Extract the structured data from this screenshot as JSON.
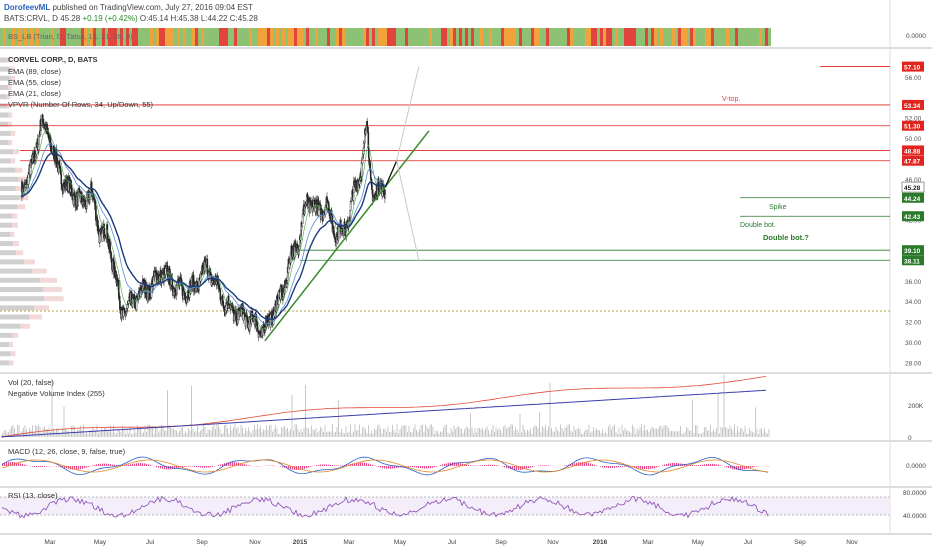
{
  "header": {
    "author": "DorofeevML",
    "published": "published on TradingView.com, July 27, 2016 09:04 EST",
    "ticker": "BATS:CRVL, D",
    "last": "45.28",
    "change": "+0.19 (+0.42%)",
    "o": "O:45.14",
    "h": "H:45.38",
    "l": "L:44.22",
    "c": "C:45.28"
  },
  "strip": {
    "label": "BS_LB (Trian, D, Tatsa, 13, 21, 26, 9)",
    "value": "0.0000",
    "colors": {
      "green": "#8dc275",
      "red": "#e0443c",
      "orange": "#f2a23a"
    }
  },
  "main": {
    "title": "CORVEL CORP., D, BATS",
    "studies": [
      "EMA (89, close)",
      "EMA (55, close)",
      "EMA (21, close)",
      "VPVR (Number Of Rows, 34, Up/Down, 55)"
    ],
    "annotations": {
      "vtop": "V-top.",
      "spike": "Spike",
      "double_bot": "Double bot.",
      "double_bot_q": "Double bot.?"
    },
    "price_ticks": [
      "56.00",
      "52.00",
      "50.00",
      "46.00",
      "44.00",
      "42.00",
      "38.00",
      "36.00",
      "34.00",
      "32.00",
      "30.00",
      "28.00"
    ],
    "price_tags": [
      {
        "text": "57.10",
        "color": "#e0241e"
      },
      {
        "text": "53.34",
        "color": "#e0241e"
      },
      {
        "text": "51.30",
        "color": "#e0241e"
      },
      {
        "text": "48.88",
        "color": "#e0241e"
      },
      {
        "text": "47.87",
        "color": "#e0241e"
      },
      {
        "text": "45.28",
        "color": "#ffffff"
      },
      {
        "text": "44.24",
        "color": "#2a7a2a"
      },
      {
        "text": "42.43",
        "color": "#2a7a2a"
      },
      {
        "text": "39.10",
        "color": "#2a7a2a"
      },
      {
        "text": "38.11",
        "color": "#2a7a2a"
      }
    ]
  },
  "vol": {
    "label1": "Vol (20, false)",
    "label2": "Negative Volume Index (255)",
    "ticks": [
      "200K",
      "0"
    ]
  },
  "macd": {
    "label": "MACD (12, 26, close, 9, false, true)",
    "ticks": [
      "0.0000"
    ]
  },
  "rsi": {
    "label": "RSI (13, close)",
    "ticks": [
      "80.0000",
      "40.0000"
    ]
  },
  "time_axis": [
    "Mar",
    "May",
    "Jul",
    "Sep",
    "Nov",
    "2015",
    "Mar",
    "May",
    "Jul",
    "Sep",
    "Nov",
    "2016",
    "Mar",
    "May",
    "Jul",
    "Sep",
    "Nov"
  ],
  "chart_data": {
    "type": "line",
    "symbol": "BATS:CRVL",
    "interval": "D",
    "price_ylim": [
      28,
      58
    ],
    "price_path": [
      [
        "2014-01-15",
        45
      ],
      [
        "2014-02-10",
        47
      ],
      [
        "2014-03-05",
        51.5
      ],
      [
        "2014-03-25",
        50.5
      ],
      [
        "2014-04-10",
        48
      ],
      [
        "2014-05-05",
        45.5
      ],
      [
        "2014-06-01",
        44.5
      ],
      [
        "2014-06-20",
        43.5
      ],
      [
        "2014-07-10",
        45
      ],
      [
        "2014-08-01",
        41
      ],
      [
        "2014-08-20",
        40.5
      ],
      [
        "2014-09-10",
        37
      ],
      [
        "2014-09-25",
        33
      ],
      [
        "2014-10-15",
        33.5
      ],
      [
        "2014-11-15",
        35
      ],
      [
        "2014-12-10",
        35.5
      ],
      [
        "2015-01-05",
        37
      ],
      [
        "2015-02-01",
        36
      ],
      [
        "2015-03-01",
        35
      ],
      [
        "2015-04-01",
        35.5
      ],
      [
        "2015-05-01",
        37.5
      ],
      [
        "2015-05-20",
        36
      ],
      [
        "2015-06-15",
        34
      ],
      [
        "2015-07-10",
        33
      ],
      [
        "2015-08-10",
        32.5
      ],
      [
        "2015-09-01",
        32
      ],
      [
        "2015-09-20",
        31
      ],
      [
        "2015-10-15",
        33
      ],
      [
        "2015-11-10",
        35
      ],
      [
        "2015-12-01",
        38.5
      ],
      [
        "2015-12-20",
        40
      ],
      [
        "2016-01-10",
        44
      ],
      [
        "2016-02-05",
        43
      ],
      [
        "2016-03-01",
        43.5
      ],
      [
        "2016-03-25",
        40.5
      ],
      [
        "2016-04-20",
        41.5
      ],
      [
        "2016-05-10",
        45
      ],
      [
        "2016-06-01",
        48
      ],
      [
        "2016-06-10",
        52
      ],
      [
        "2016-06-20",
        46
      ],
      [
        "2016-07-01",
        44
      ],
      [
        "2016-07-15",
        45.5
      ],
      [
        "2016-07-27",
        45.28
      ]
    ],
    "levels": [
      57.1,
      53.34,
      51.3,
      48.88,
      47.87,
      44.24,
      42.43,
      39.1,
      38.11
    ],
    "trendline": [
      [
        "2015-09-25",
        30.2
      ],
      [
        "2016-11-15",
        50.8
      ]
    ],
    "projection": [
      [
        "2016-07-27",
        45.28
      ],
      [
        "2016-08-25",
        47.87
      ],
      [
        "2016-10-20",
        57.1
      ]
    ],
    "alt_projection": [
      [
        "2016-08-25",
        47.87
      ],
      [
        "2016-10-20",
        38.11
      ]
    ]
  }
}
